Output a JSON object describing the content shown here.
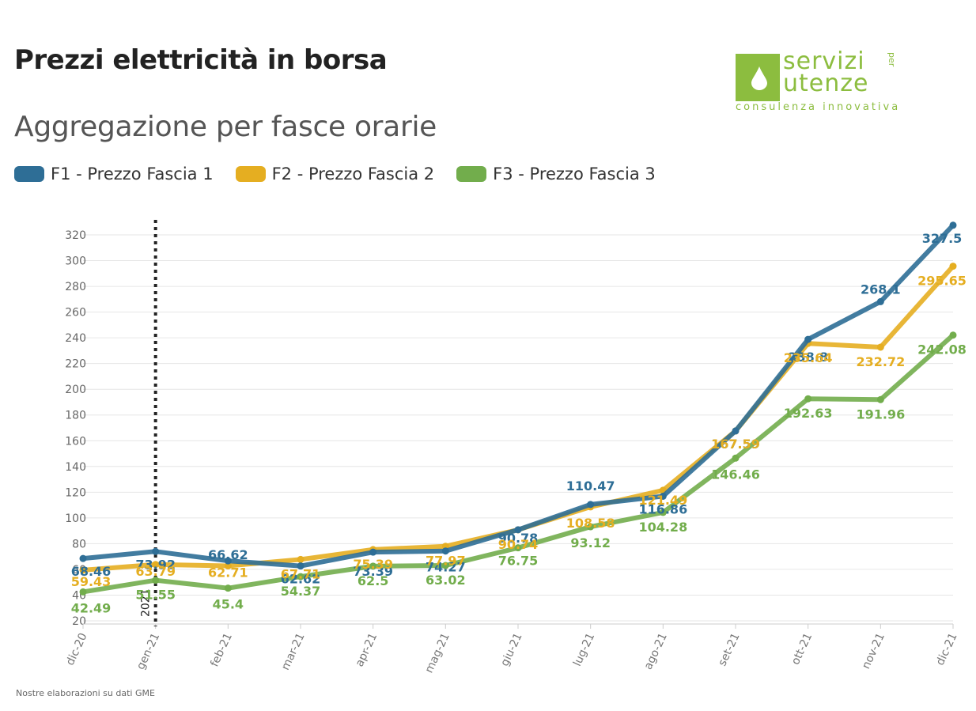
{
  "header": {
    "title": "Prezzi elettricità in borsa",
    "subtitle": "Aggregazione per fasce orarie"
  },
  "logo": {
    "line1": "servizi",
    "line2": "utenze",
    "small": "per",
    "tagline": "consulenza innovativa",
    "color": "#8cbd3f"
  },
  "footnote": "Nostre elaborazioni su dati GME",
  "chart_data": {
    "type": "line",
    "title": "Prezzi elettricità in borsa",
    "subtitle": "Aggregazione per fasce orarie",
    "categories": [
      "dic-20",
      "gen-21",
      "feb-21",
      "mar-21",
      "apr-21",
      "mag-21",
      "giu-21",
      "lug-21",
      "ago-21",
      "set-21",
      "ott-21",
      "nov-21",
      "dic-21"
    ],
    "ylim": [
      20,
      320
    ],
    "yticks": [
      20,
      40,
      60,
      80,
      100,
      120,
      140,
      160,
      180,
      200,
      220,
      240,
      260,
      280,
      300,
      320
    ],
    "grid": true,
    "legend_position": "top-left",
    "annotation": {
      "label": "2021",
      "at": "gen-21",
      "style": "dotted-vertical-line"
    },
    "series": [
      {
        "name": "F1 - Prezzo Fascia 1",
        "color": "#2e6e96",
        "values": [
          68.46,
          73.92,
          66.62,
          62.62,
          73.39,
          74.27,
          90.78,
          110.47,
          116.86,
          167.59,
          238.8,
          268.1,
          327.5
        ]
      },
      {
        "name": "F2 - Prezzo Fascia 2",
        "color": "#e5ae21",
        "values": [
          59.43,
          63.79,
          62.71,
          67.71,
          75.39,
          77.97,
          90.74,
          108.58,
          121.49,
          167.59,
          235.64,
          232.72,
          295.65
        ]
      },
      {
        "name": "F3 - Prezzo Fascia 3",
        "color": "#72ad4c",
        "values": [
          42.49,
          51.55,
          45.4,
          54.37,
          62.5,
          63.02,
          76.75,
          93.12,
          104.28,
          146.46,
          192.63,
          191.96,
          242.08
        ]
      }
    ]
  }
}
